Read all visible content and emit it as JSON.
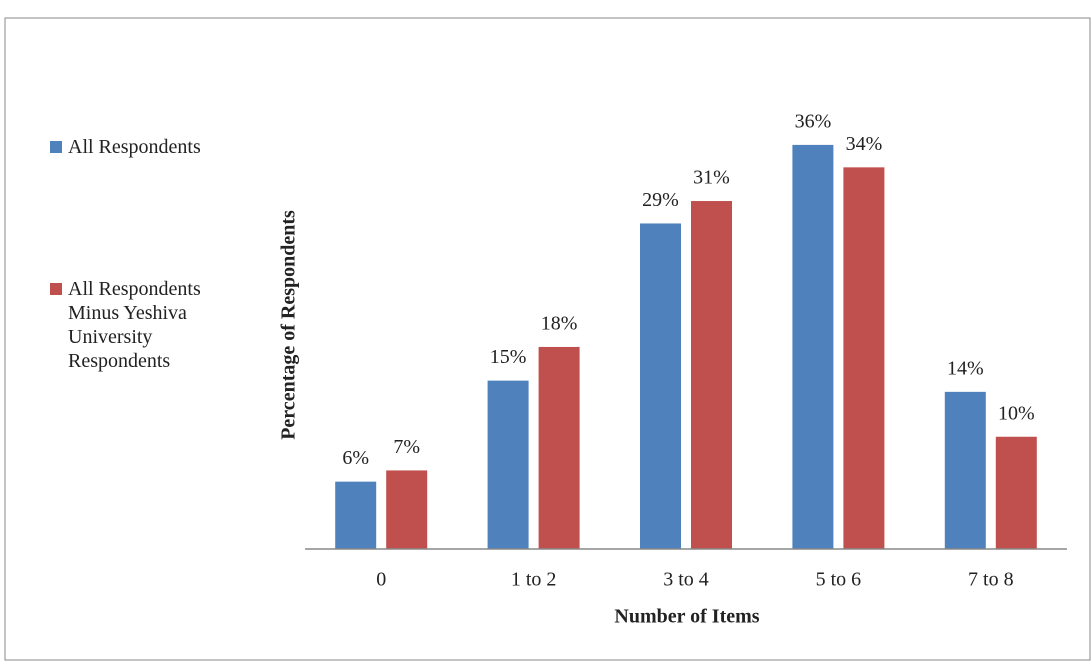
{
  "chart_data": {
    "type": "bar",
    "y_label": "Percentage of Respondents",
    "x_label": "Number of Items",
    "categories": [
      "0",
      "1 to 2",
      "3 to 4",
      "5 to 6",
      "7 to 8"
    ],
    "series": [
      {
        "name": "All Respondents",
        "color": "#4f81bd",
        "values": [
          6,
          15,
          29,
          36,
          14
        ],
        "value_labels": [
          "6%",
          "15%",
          "29%",
          "36%",
          "14%"
        ]
      },
      {
        "name": "All Respondents Minus Yeshiva University Respondents",
        "color": "#c0504d",
        "values": [
          7,
          18,
          31,
          34,
          10
        ],
        "value_labels": [
          "7%",
          "18%",
          "31%",
          "34%",
          "10%"
        ]
      }
    ],
    "ylim": [
      0,
      40
    ],
    "legend": "left"
  }
}
